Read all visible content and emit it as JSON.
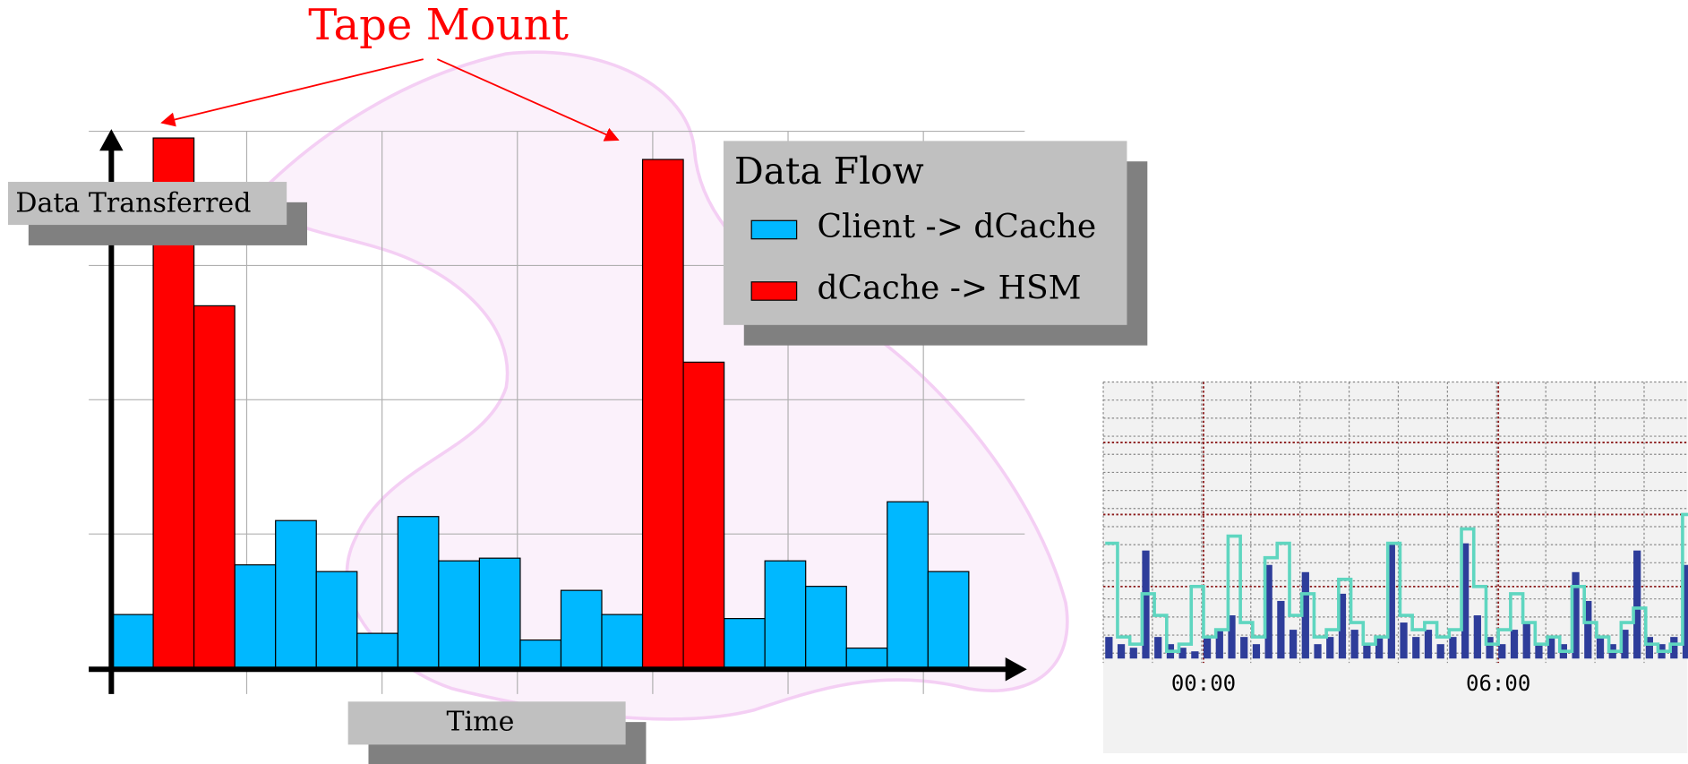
{
  "chart_data": [
    {
      "type": "bar",
      "annotation": "Tape Mount",
      "y_label": "Data Transferred",
      "x_label": "Time",
      "legend_title": "Data Flow",
      "categories": [
        null,
        null,
        null,
        null,
        null,
        null,
        null,
        null,
        null,
        null,
        null,
        null,
        null,
        null,
        null,
        null,
        null,
        null,
        null,
        null,
        null
      ],
      "ylim": [
        0,
        4
      ],
      "grid": true,
      "series": [
        {
          "name": "Client -> dCache",
          "color": "#00b8ff",
          "values": [
            0.4,
            null,
            null,
            0.77,
            1.1,
            0.72,
            0.26,
            1.13,
            0.8,
            0.82,
            0.21,
            0.58,
            0.4,
            null,
            null,
            0.37,
            0.8,
            0.61,
            0.15,
            1.24,
            0.72
          ]
        },
        {
          "name": "dCache -> HSM",
          "color": "#ff0000",
          "values": [
            null,
            3.95,
            2.7,
            null,
            null,
            null,
            null,
            null,
            null,
            null,
            null,
            null,
            null,
            3.79,
            2.28,
            null,
            null,
            null,
            null,
            null,
            null
          ]
        }
      ]
    },
    {
      "type": "step",
      "x": [
        -2,
        -1.75,
        -1.5,
        -1.25,
        -1,
        -0.75,
        -0.5,
        -0.25,
        0,
        0.25,
        0.5,
        0.75,
        1,
        1.25,
        1.5,
        1.75,
        2,
        2.25,
        2.5,
        2.75,
        3,
        3.25,
        3.5,
        3.75,
        4,
        4.25,
        4.5,
        4.75,
        5,
        5.25,
        5.5,
        5.75,
        6,
        6.25,
        6.5,
        6.75,
        7,
        7.25,
        7.5,
        7.75,
        8,
        8.25,
        8.5,
        8.75,
        9,
        9.25,
        9.5,
        9.75
      ],
      "xlim": [
        -2.04,
        9.85
      ],
      "xticks": [
        {
          "value": 0,
          "label": "00:00"
        },
        {
          "value": 6,
          "label": "06:00"
        }
      ],
      "ylim": [
        0,
        3.84
      ],
      "grid": true,
      "series": [
        {
          "color": "#2e3d9a",
          "kind": "bar",
          "values": [
            0.3,
            0.2,
            0.15,
            1.5,
            0.3,
            0.2,
            0.15,
            0.1,
            0.3,
            0.4,
            0.6,
            0.3,
            0.2,
            1.3,
            0.8,
            0.4,
            1.2,
            0.2,
            0.3,
            0.9,
            0.4,
            0.2,
            0.3,
            1.6,
            0.5,
            0.3,
            0.4,
            0.2,
            0.3,
            1.6,
            0.6,
            0.3,
            0.2,
            0.4,
            0.5,
            0.2,
            0.3,
            0.2,
            1.2,
            0.8,
            0.3,
            0.2,
            0.4,
            1.5,
            0.3,
            0.2,
            0.3,
            1.3
          ]
        },
        {
          "color": "#5fd6c0",
          "kind": "step",
          "values": [
            1.6,
            0.3,
            0.2,
            0.9,
            0.6,
            0.1,
            0.2,
            1.0,
            0.3,
            0.4,
            1.7,
            0.5,
            0.3,
            1.4,
            1.6,
            0.6,
            0.9,
            0.3,
            0.4,
            1.1,
            0.5,
            0.2,
            0.3,
            1.6,
            0.6,
            0.4,
            0.5,
            0.3,
            0.4,
            1.8,
            1.0,
            0.2,
            0.4,
            0.9,
            0.5,
            0.2,
            0.3,
            0.1,
            1.0,
            0.5,
            0.3,
            0.1,
            0.5,
            0.7,
            0.2,
            0.1,
            0.2,
            2.0
          ]
        }
      ]
    }
  ]
}
